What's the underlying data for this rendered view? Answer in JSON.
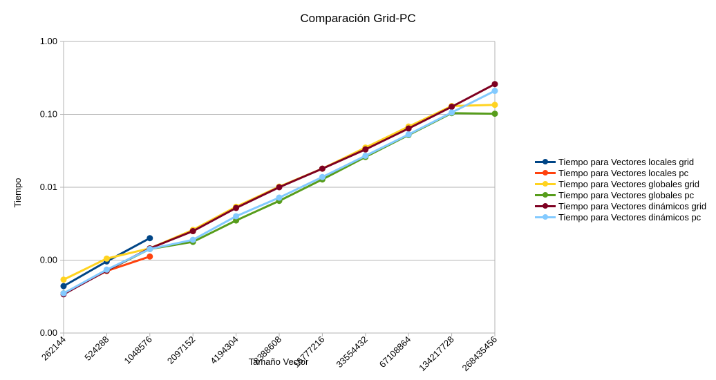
{
  "chart_data": {
    "type": "line",
    "title": "Comparación Grid-PC",
    "xlabel": "Tamaño Vector",
    "ylabel": "Tiempo",
    "y_scale": "log",
    "ylim": [
      0.0001,
      1
    ],
    "y_ticks": [
      {
        "value": 1,
        "label": "1.00"
      },
      {
        "value": 0.1,
        "label": "0.10"
      },
      {
        "value": 0.01,
        "label": "0.01"
      },
      {
        "value": 0.001,
        "label": "0.00"
      },
      {
        "value": 0.0001,
        "label": "0.00"
      }
    ],
    "grid": true,
    "legend": "right",
    "categories": [
      "262144",
      "524288",
      "1048576",
      "2097152",
      "4194304",
      "8388608",
      "16777216",
      "33554432",
      "67108864",
      "134217728",
      "268435456"
    ],
    "series": [
      {
        "name": "Tiempo para Vectores locales grid",
        "color": "#004586",
        "values": [
          0.00044,
          0.00096,
          0.002,
          null,
          null,
          null,
          null,
          null,
          null,
          null,
          null
        ]
      },
      {
        "name": "Tiempo para Vectores locales pc",
        "color": "#ff420e",
        "values": [
          0.00035,
          0.00071,
          0.00112,
          null,
          null,
          null,
          null,
          null,
          null,
          null,
          null
        ]
      },
      {
        "name": "Tiempo para Vectores globales grid",
        "color": "#ffd320",
        "values": [
          0.00054,
          0.00105,
          0.00145,
          0.0026,
          0.0054,
          0.0102,
          0.018,
          0.035,
          0.068,
          0.13,
          0.135
        ]
      },
      {
        "name": "Tiempo para Vectores globales pc",
        "color": "#579d1c",
        "values": [
          0.00035,
          0.00072,
          0.00142,
          0.00178,
          0.0035,
          0.0065,
          0.0128,
          0.026,
          0.052,
          0.104,
          0.102
        ]
      },
      {
        "name": "Tiempo para Vectores dinámicos grid",
        "color": "#7e0021",
        "values": [
          0.00034,
          0.00072,
          0.00145,
          0.0025,
          0.0052,
          0.01,
          0.018,
          0.033,
          0.064,
          0.127,
          0.26
        ]
      },
      {
        "name": "Tiempo para Vectores dinámicos pc",
        "color": "#83caff",
        "values": [
          0.00035,
          0.00074,
          0.00142,
          0.0019,
          0.004,
          0.0072,
          0.0138,
          0.027,
          0.053,
          0.106,
          0.21
        ]
      }
    ]
  }
}
